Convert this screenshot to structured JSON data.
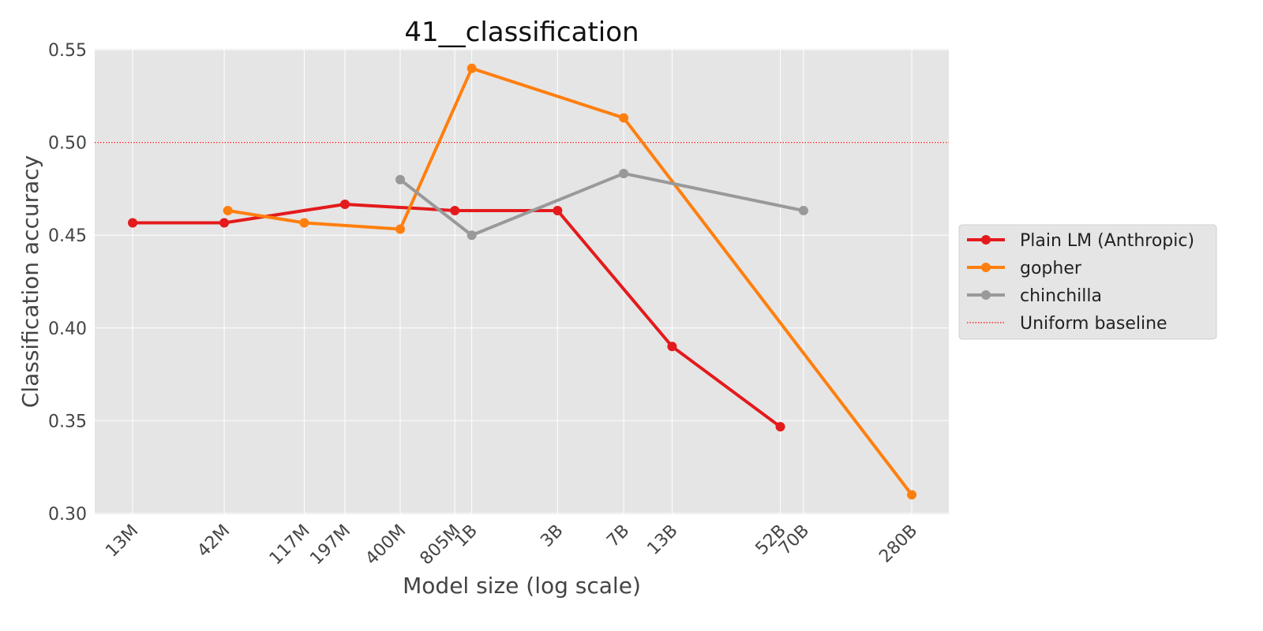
{
  "chart_data": {
    "type": "line",
    "title": "41__classification",
    "x_label": "Model size (log scale)",
    "y_label": "Classification accuracy",
    "x_scale": "log",
    "grid": true,
    "legend_position": "right",
    "xlim": [
      8000000,
      450000000000
    ],
    "ylim": [
      0.2995,
      0.5505
    ],
    "xticks": [
      {
        "value": 13000000,
        "label": "13M"
      },
      {
        "value": 42000000,
        "label": "42M"
      },
      {
        "value": 117000000,
        "label": "117M"
      },
      {
        "value": 197000000,
        "label": "197M"
      },
      {
        "value": 400000000,
        "label": "400M"
      },
      {
        "value": 805000000,
        "label": "805M"
      },
      {
        "value": 1000000000,
        "label": "1B"
      },
      {
        "value": 3000000000,
        "label": "3B"
      },
      {
        "value": 7000000000,
        "label": "7B"
      },
      {
        "value": 13000000000,
        "label": "13B"
      },
      {
        "value": 52000000000,
        "label": "52B"
      },
      {
        "value": 70000000000,
        "label": "70B"
      },
      {
        "value": 280000000000,
        "label": "280B"
      }
    ],
    "yticks": [
      {
        "value": 0.3,
        "label": "0.30"
      },
      {
        "value": 0.35,
        "label": "0.35"
      },
      {
        "value": 0.4,
        "label": "0.40"
      },
      {
        "value": 0.45,
        "label": "0.45"
      },
      {
        "value": 0.5,
        "label": "0.50"
      },
      {
        "value": 0.55,
        "label": "0.55"
      }
    ],
    "series": [
      {
        "name": "Plain LM (Anthropic)",
        "color": "#e41a1c",
        "x": [
          13000000,
          42000000,
          197000000,
          805000000,
          3000000000,
          13000000000,
          52000000000
        ],
        "values": [
          0.4567,
          0.4567,
          0.4667,
          0.4633,
          0.4633,
          0.39,
          0.3467
        ]
      },
      {
        "name": "gopher",
        "color": "#ff7f0e",
        "x": [
          44000000,
          117000000,
          400000000,
          1000000000,
          7000000000,
          280000000000
        ],
        "values": [
          0.4633,
          0.4567,
          0.4533,
          0.54,
          0.5133,
          0.31
        ]
      },
      {
        "name": "chinchilla",
        "color": "#999999",
        "x": [
          400000000,
          1000000000,
          7000000000,
          70000000000
        ],
        "values": [
          0.48,
          0.45,
          0.4833,
          0.4633
        ]
      }
    ],
    "baseline": {
      "name": "Uniform baseline",
      "value": 0.5,
      "color": "#ff0000"
    }
  }
}
